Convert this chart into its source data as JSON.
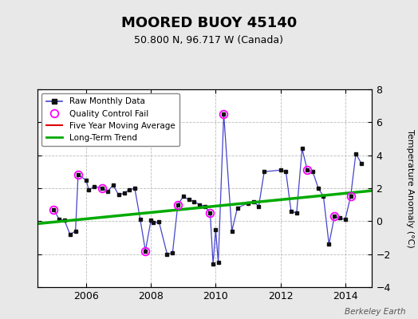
{
  "title": "MOORED BUOY 45140",
  "subtitle": "50.800 N, 96.717 W (Canada)",
  "ylabel": "Temperature Anomaly (°C)",
  "credit": "Berkeley Earth",
  "ylim": [
    -4,
    8
  ],
  "yticks": [
    -4,
    -2,
    0,
    2,
    4,
    6,
    8
  ],
  "xlim": [
    2004.5,
    2014.83
  ],
  "xticks": [
    2006,
    2008,
    2010,
    2012,
    2014
  ],
  "bg_color": "#e8e8e8",
  "plot_bg": "#ffffff",
  "raw_x": [
    2005.0,
    2005.17,
    2005.33,
    2005.5,
    2005.67,
    2005.75,
    2006.0,
    2006.08,
    2006.25,
    2006.5,
    2006.67,
    2006.83,
    2007.0,
    2007.17,
    2007.33,
    2007.5,
    2007.67,
    2007.83,
    2008.0,
    2008.08,
    2008.25,
    2008.5,
    2008.67,
    2008.83,
    2009.0,
    2009.17,
    2009.33,
    2009.5,
    2009.67,
    2009.83,
    2009.92,
    2010.0,
    2010.08,
    2010.25,
    2010.5,
    2010.67,
    2011.0,
    2011.17,
    2011.33,
    2011.5,
    2012.0,
    2012.17,
    2012.33,
    2012.5,
    2012.67,
    2012.83,
    2013.0,
    2013.17,
    2013.33,
    2013.5,
    2013.67,
    2013.83,
    2014.0,
    2014.17,
    2014.33,
    2014.5
  ],
  "raw_y": [
    0.7,
    0.1,
    0.05,
    -0.8,
    -0.6,
    2.8,
    2.5,
    1.9,
    2.1,
    2.0,
    1.8,
    2.2,
    1.6,
    1.7,
    1.9,
    2.0,
    0.1,
    -1.8,
    0.05,
    -0.1,
    -0.05,
    -2.0,
    -1.9,
    1.0,
    1.5,
    1.3,
    1.2,
    1.0,
    0.9,
    0.5,
    -2.6,
    -0.5,
    -2.5,
    6.5,
    -0.6,
    0.8,
    1.1,
    1.2,
    0.9,
    3.0,
    3.1,
    3.0,
    0.6,
    0.5,
    4.4,
    3.1,
    3.0,
    2.0,
    1.5,
    -1.4,
    0.3,
    0.2,
    0.1,
    1.5,
    4.1,
    3.5
  ],
  "qc_fail_x": [
    2005.0,
    2005.75,
    2006.5,
    2007.83,
    2008.83,
    2009.83,
    2010.25,
    2012.83,
    2013.67,
    2014.17
  ],
  "qc_fail_y": [
    0.7,
    2.8,
    2.0,
    -1.8,
    1.0,
    0.5,
    6.5,
    3.1,
    0.3,
    1.5
  ],
  "trend_x": [
    2004.5,
    2014.83
  ],
  "trend_y": [
    -0.15,
    1.85
  ],
  "raw_line_color": "#4444cc",
  "raw_marker_color": "#111111",
  "qc_color": "#ff00ff",
  "trend_color": "#00aa00",
  "mavg_color": "#dd0000",
  "legend_labels": [
    "Raw Monthly Data",
    "Quality Control Fail",
    "Five Year Moving Average",
    "Long-Term Trend"
  ]
}
